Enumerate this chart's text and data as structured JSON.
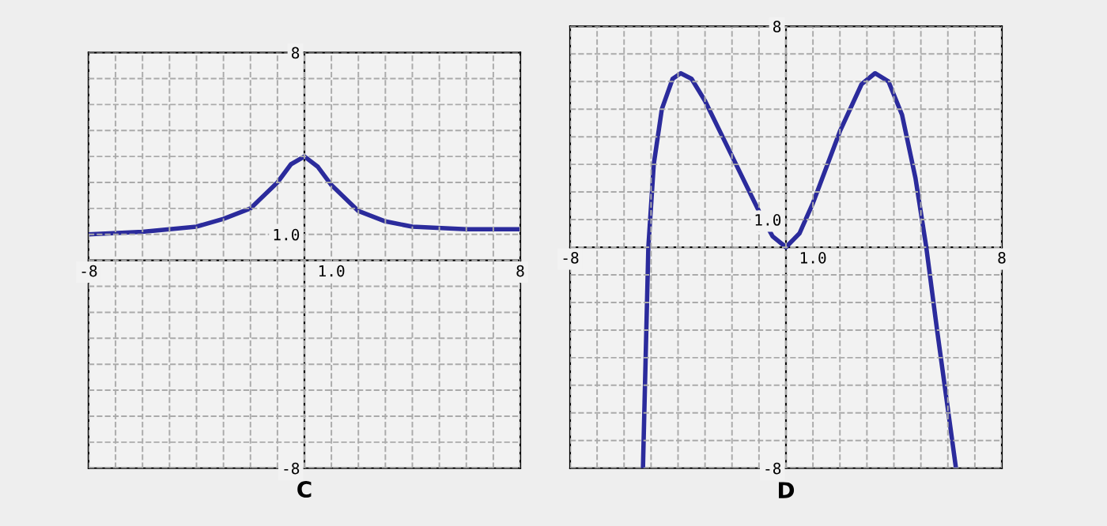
{
  "chart_data": [
    {
      "type": "line",
      "title": "C",
      "xlim": [
        -8,
        8
      ],
      "ylim": [
        -8,
        8
      ],
      "xticks": [
        {
          "value": -8,
          "label": "-8"
        },
        {
          "value": -7,
          "label": null
        },
        {
          "value": -6,
          "label": null
        },
        {
          "value": -5,
          "label": null
        },
        {
          "value": -4,
          "label": null
        },
        {
          "value": -3,
          "label": null
        },
        {
          "value": -2,
          "label": null
        },
        {
          "value": -1,
          "label": null
        },
        {
          "value": 0,
          "label": null
        },
        {
          "value": 1,
          "label": "1.0"
        },
        {
          "value": 2,
          "label": null
        },
        {
          "value": 3,
          "label": null
        },
        {
          "value": 4,
          "label": null
        },
        {
          "value": 5,
          "label": null
        },
        {
          "value": 6,
          "label": null
        },
        {
          "value": 7,
          "label": null
        },
        {
          "value": 8,
          "label": "8"
        }
      ],
      "yticks": [
        {
          "value": -8,
          "label": "-8"
        },
        {
          "value": -7,
          "label": null
        },
        {
          "value": -6,
          "label": null
        },
        {
          "value": -5,
          "label": null
        },
        {
          "value": -4,
          "label": null
        },
        {
          "value": -3,
          "label": null
        },
        {
          "value": -2,
          "label": null
        },
        {
          "value": -1,
          "label": null
        },
        {
          "value": 0,
          "label": null
        },
        {
          "value": 1,
          "label": "1.0"
        },
        {
          "value": 2,
          "label": null
        },
        {
          "value": 3,
          "label": null
        },
        {
          "value": 4,
          "label": null
        },
        {
          "value": 5,
          "label": null
        },
        {
          "value": 6,
          "label": null
        },
        {
          "value": 7,
          "label": null
        },
        {
          "value": 8,
          "label": "8"
        }
      ],
      "grid": true,
      "line_style": "solid",
      "series": [
        {
          "color": "#2b2b9c",
          "x": [
            -8,
            -6,
            -4,
            -3,
            -2,
            -1,
            -0.5,
            0,
            0.5,
            1,
            2,
            3,
            4,
            6,
            8
          ],
          "values": [
            1.0,
            1.1,
            1.3,
            1.6,
            2.0,
            3.0,
            3.7,
            4.0,
            3.6,
            2.9,
            1.9,
            1.5,
            1.3,
            1.2,
            1.2
          ]
        }
      ]
    },
    {
      "type": "line",
      "title": "D",
      "xlim": [
        -8,
        8
      ],
      "ylim": [
        -8,
        8
      ],
      "xticks": [
        {
          "value": -8,
          "label": "-8"
        },
        {
          "value": -7,
          "label": null
        },
        {
          "value": -6,
          "label": null
        },
        {
          "value": -5,
          "label": null
        },
        {
          "value": -4,
          "label": null
        },
        {
          "value": -3,
          "label": null
        },
        {
          "value": -2,
          "label": null
        },
        {
          "value": -1,
          "label": null
        },
        {
          "value": 0,
          "label": null
        },
        {
          "value": 1,
          "label": "1.0"
        },
        {
          "value": 2,
          "label": null
        },
        {
          "value": 3,
          "label": null
        },
        {
          "value": 4,
          "label": null
        },
        {
          "value": 5,
          "label": null
        },
        {
          "value": 6,
          "label": null
        },
        {
          "value": 7,
          "label": null
        },
        {
          "value": 8,
          "label": "8"
        }
      ],
      "yticks": [
        {
          "value": -8,
          "label": "-8"
        },
        {
          "value": -7,
          "label": null
        },
        {
          "value": -6,
          "label": null
        },
        {
          "value": -5,
          "label": null
        },
        {
          "value": -4,
          "label": null
        },
        {
          "value": -3,
          "label": null
        },
        {
          "value": -2,
          "label": null
        },
        {
          "value": -1,
          "label": null
        },
        {
          "value": 0,
          "label": null
        },
        {
          "value": 1,
          "label": "1.0"
        },
        {
          "value": 2,
          "label": null
        },
        {
          "value": 3,
          "label": null
        },
        {
          "value": 4,
          "label": null
        },
        {
          "value": 5,
          "label": null
        },
        {
          "value": 6,
          "label": null
        },
        {
          "value": 7,
          "label": null
        },
        {
          "value": 8,
          "label": "8"
        }
      ],
      "grid": true,
      "line_style": "solid",
      "series": [
        {
          "color": "#2b2b9c",
          "x": [
            -5.3,
            -5.2,
            -5.1,
            -4.9,
            -4.6,
            -4.2,
            -3.9,
            -3.5,
            -3,
            -2,
            -1,
            -0.5,
            0,
            0.5,
            1,
            2,
            2.8,
            3.3,
            3.8,
            4.3,
            4.8,
            5.2,
            5.6,
            6.3
          ],
          "values": [
            -8,
            -4,
            0,
            3,
            5,
            6.1,
            6.3,
            6.1,
            5.3,
            3.3,
            1.3,
            0.4,
            0,
            0.5,
            1.6,
            4.2,
            5.9,
            6.3,
            6.0,
            4.8,
            2.5,
            0,
            -3,
            -8
          ]
        }
      ]
    }
  ]
}
